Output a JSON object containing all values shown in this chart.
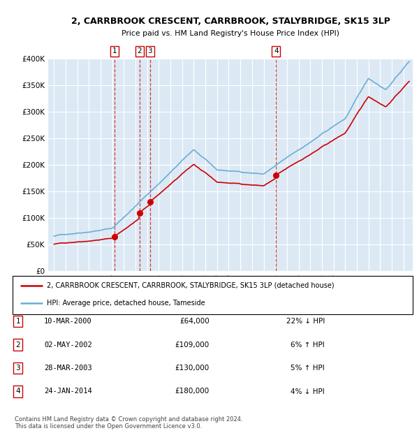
{
  "title": "2, CARRBROOK CRESCENT, CARRBROOK, STALYBRIDGE, SK15 3LP",
  "subtitle": "Price paid vs. HM Land Registry's House Price Index (HPI)",
  "bg_color": "#dce9f5",
  "grid_color": "white",
  "sale_dates": [
    2000.19,
    2002.33,
    2003.24,
    2014.07
  ],
  "sale_prices": [
    64000,
    109000,
    130000,
    180000
  ],
  "sale_labels": [
    "1",
    "2",
    "3",
    "4"
  ],
  "legend_entries": [
    "2, CARRBROOK CRESCENT, CARRBROOK, STALYBRIDGE, SK15 3LP (detached house)",
    "HPI: Average price, detached house, Tameside"
  ],
  "table_rows": [
    [
      "1",
      "10-MAR-2000",
      "£64,000",
      "22% ↓ HPI"
    ],
    [
      "2",
      "02-MAY-2002",
      "£109,000",
      "6% ↑ HPI"
    ],
    [
      "3",
      "28-MAR-2003",
      "£130,000",
      "5% ↑ HPI"
    ],
    [
      "4",
      "24-JAN-2014",
      "£180,000",
      "4% ↓ HPI"
    ]
  ],
  "footnote": "Contains HM Land Registry data © Crown copyright and database right 2024.\nThis data is licensed under the Open Government Licence v3.0.",
  "hpi_color": "#6aaed6",
  "price_color": "#cc0000",
  "vline_color": "#cc0000",
  "ylim": [
    0,
    400000
  ],
  "xlim": [
    1994.5,
    2025.8
  ],
  "yticks": [
    0,
    50000,
    100000,
    150000,
    200000,
    250000,
    300000,
    350000,
    400000
  ],
  "xtick_start": 1995,
  "xtick_end": 2025
}
